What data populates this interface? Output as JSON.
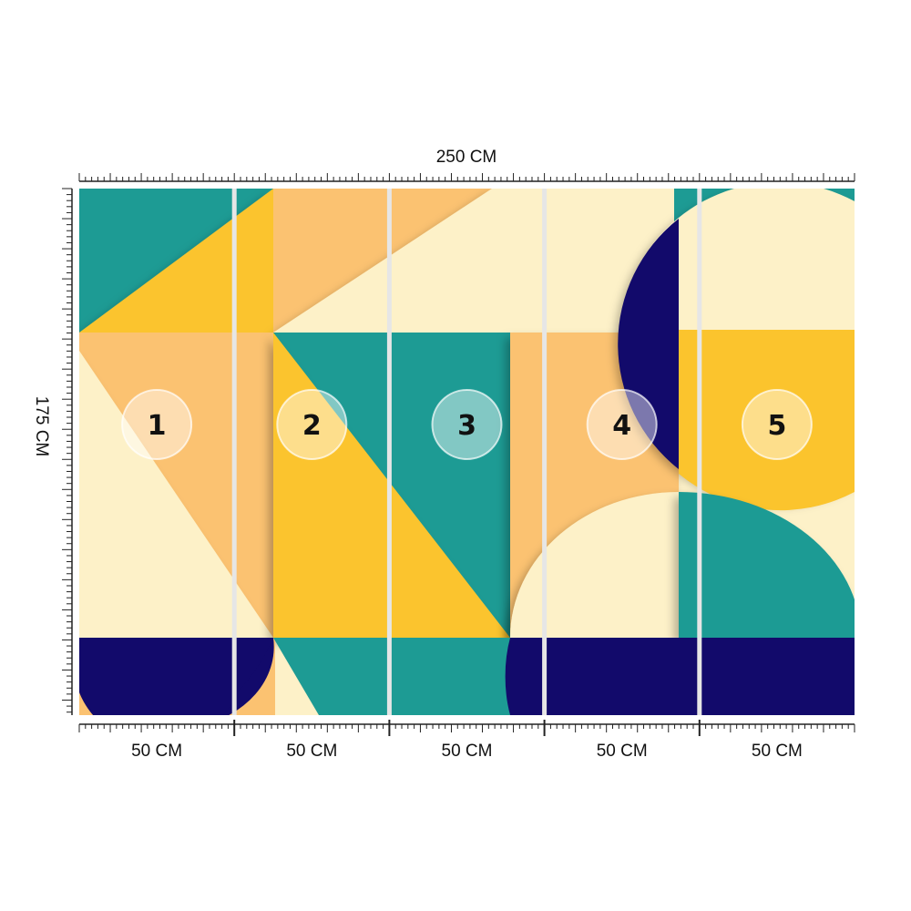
{
  "dimensions": {
    "total_width": "250 CM",
    "total_height": "175 CM",
    "panel_widths": [
      "50 CM",
      "50 CM",
      "50 CM",
      "50 CM",
      "50 CM"
    ]
  },
  "panels": [
    {
      "number": "1"
    },
    {
      "number": "2"
    },
    {
      "number": "3"
    },
    {
      "number": "4"
    },
    {
      "number": "5"
    }
  ],
  "colors": {
    "teal": "#1d9b94",
    "yellow": "#fbc42d",
    "peach": "#fbc271",
    "cream": "#fdf1c8",
    "navy": "#120a6b",
    "seam": "#e6e6e6",
    "ruler": "#222222"
  }
}
